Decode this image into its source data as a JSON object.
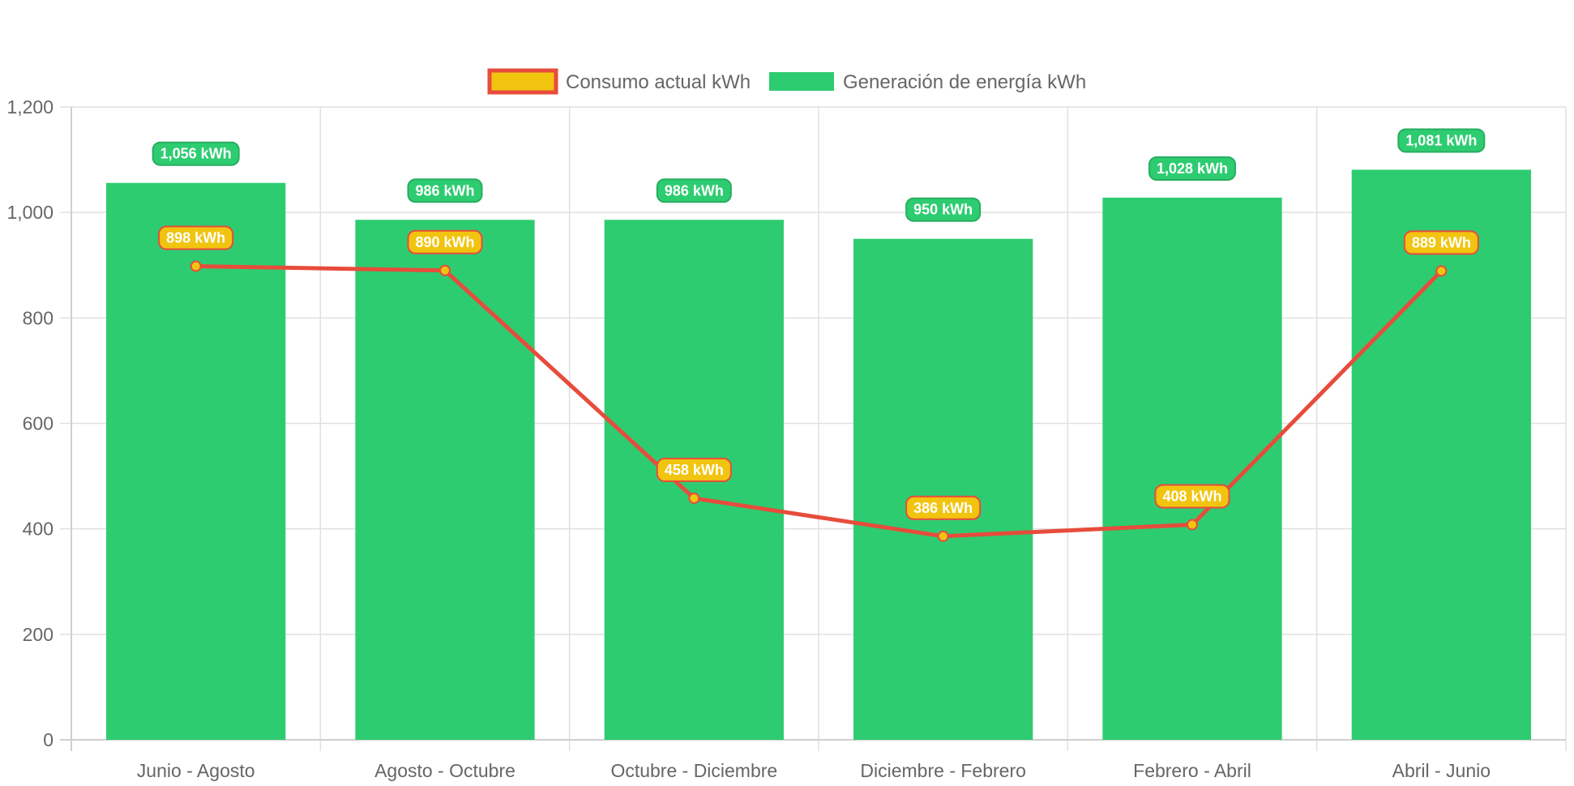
{
  "chart_data": {
    "type": "bar",
    "categories": [
      "Junio - Agosto",
      "Agosto - Octubre",
      "Octubre - Diciembre",
      "Diciembre - Febrero",
      "Febrero - Abril",
      "Abril - Junio"
    ],
    "series": [
      {
        "name": "Consumo actual kWh",
        "type": "line",
        "values": [
          898,
          890,
          458,
          386,
          408,
          889
        ],
        "labels": [
          "898 kWh",
          "890 kWh",
          "458 kWh",
          "386 kWh",
          "408 kWh",
          "889 kWh"
        ],
        "color": "#e74c3c",
        "fill_color": "#f1c40f"
      },
      {
        "name": "Generación de energía kWh",
        "type": "bar",
        "values": [
          1056,
          986,
          986,
          950,
          1028,
          1081
        ],
        "labels": [
          "1,056 kWh",
          "986 kWh",
          "986 kWh",
          "950 kWh",
          "1,028 kWh",
          "1,081 kWh"
        ],
        "color": "#2ecc71",
        "border_color": "#27ae60"
      }
    ],
    "ylim": [
      0,
      1200
    ],
    "yticks": [
      0,
      200,
      400,
      600,
      800,
      1000,
      1200
    ],
    "ytick_labels": [
      "0",
      "200",
      "400",
      "600",
      "800",
      "1,000",
      "1,200"
    ],
    "grid": true,
    "legend_position": "top-center"
  }
}
